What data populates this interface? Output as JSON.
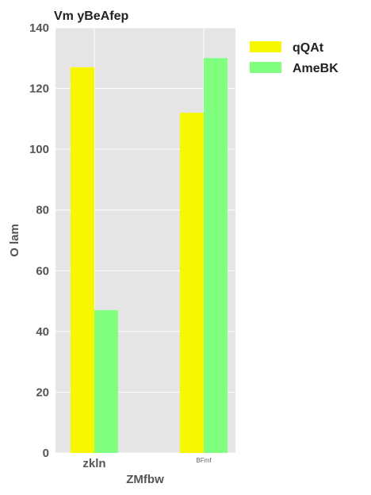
{
  "chart_data": {
    "type": "bar",
    "title": "Vm yBeAfep",
    "xlabel": "ZMfbw",
    "ylabel": "O lam",
    "categories": [
      "zkln",
      "BFmf"
    ],
    "series": [
      {
        "name": "qQAt",
        "values": [
          127,
          112
        ],
        "color": "#f7f700"
      },
      {
        "name": "AmeBK",
        "values": [
          47,
          130
        ],
        "color": "#80ff80"
      }
    ],
    "ylim": [
      0,
      140
    ],
    "yticks": [
      0,
      20,
      40,
      60,
      80,
      100,
      120,
      140
    ],
    "grid": true,
    "legend_position": "outside-right-top",
    "background": "#e5e5e5"
  }
}
